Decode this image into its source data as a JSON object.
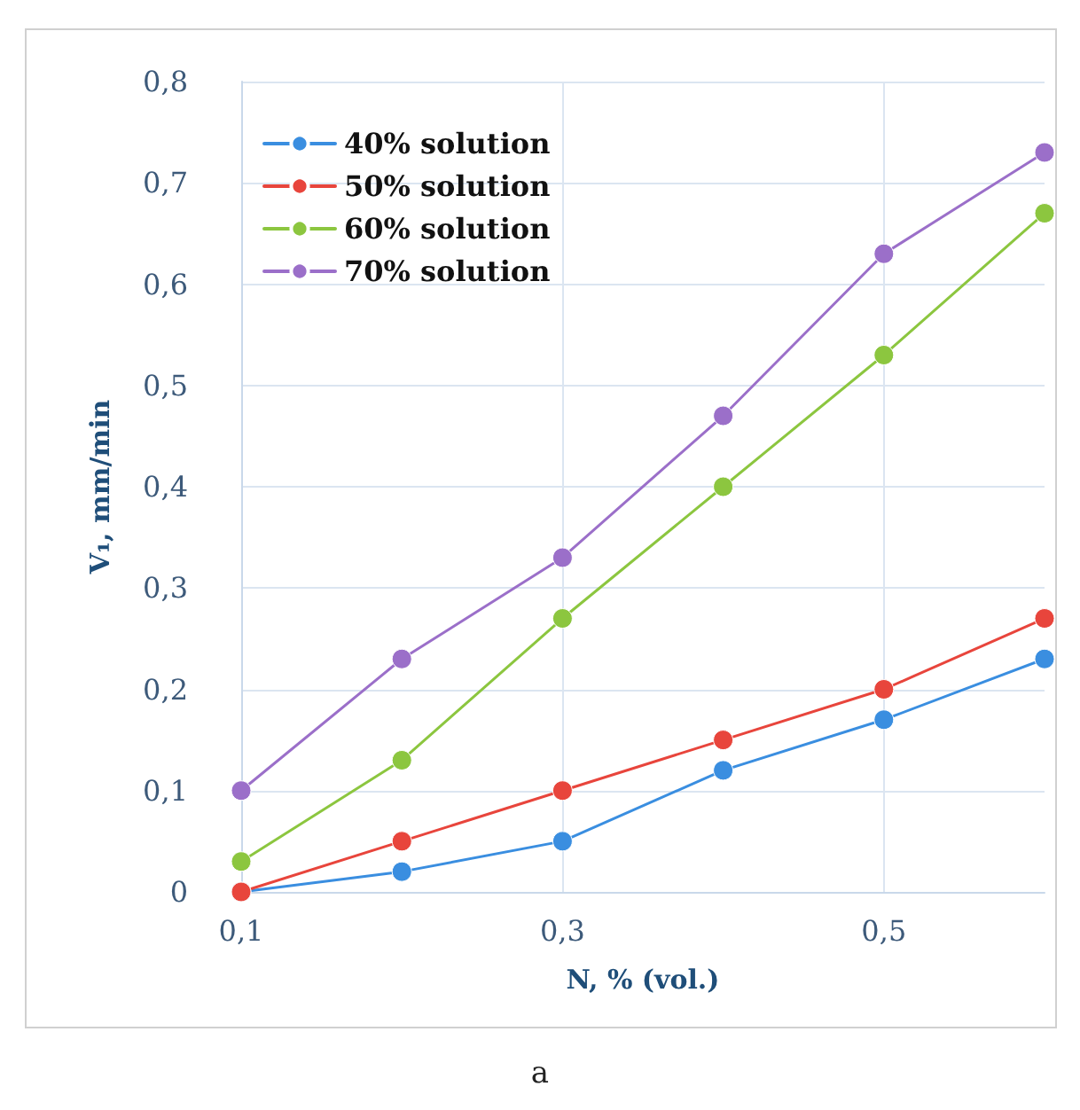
{
  "chart_data": {
    "type": "line",
    "xlabel": "N, % (vol.)",
    "ylabel": "V₁, mm/min",
    "annotations": [
      "a"
    ],
    "x": [
      0.1,
      0.2,
      0.3,
      0.4,
      0.5,
      0.6
    ],
    "series": [
      {
        "name": "40% solution",
        "color": "#3a8ee0",
        "values": [
          0,
          0.02,
          0.05,
          0.12,
          0.17,
          0.23
        ]
      },
      {
        "name": "50% solution",
        "color": "#e8453c",
        "values": [
          0,
          0.05,
          0.1,
          0.15,
          0.2,
          0.27
        ]
      },
      {
        "name": "60% solution",
        "color": "#8cc63f",
        "values": [
          0.03,
          0.13,
          0.27,
          0.4,
          0.53,
          0.67
        ]
      },
      {
        "name": "70% solution",
        "color": "#9b6fc9",
        "values": [
          0.1,
          0.23,
          0.33,
          0.47,
          0.63,
          0.73
        ]
      }
    ],
    "xlim": [
      0.1,
      0.6
    ],
    "xticks": [
      {
        "value": 0.1,
        "label": "0,1"
      },
      {
        "value": 0.3,
        "label": "0,3"
      },
      {
        "value": 0.5,
        "label": "0,5"
      }
    ],
    "ylim": [
      0,
      0.8
    ],
    "yticks": [
      0,
      {
        "value": 0.1,
        "label": "0,1"
      },
      {
        "value": 0.2,
        "label": "0,2"
      },
      {
        "value": 0.3,
        "label": "0,3"
      },
      {
        "value": 0.4,
        "label": "0,4"
      },
      {
        "value": 0.5,
        "label": "0,5"
      },
      {
        "value": 0.6,
        "label": "0,6"
      },
      {
        "value": 0.7,
        "label": "0,7"
      },
      {
        "value": 0.8,
        "label": "0,8"
      }
    ],
    "grid": true,
    "legend": "top left",
    "marker": "circle",
    "line_style": "solid"
  }
}
